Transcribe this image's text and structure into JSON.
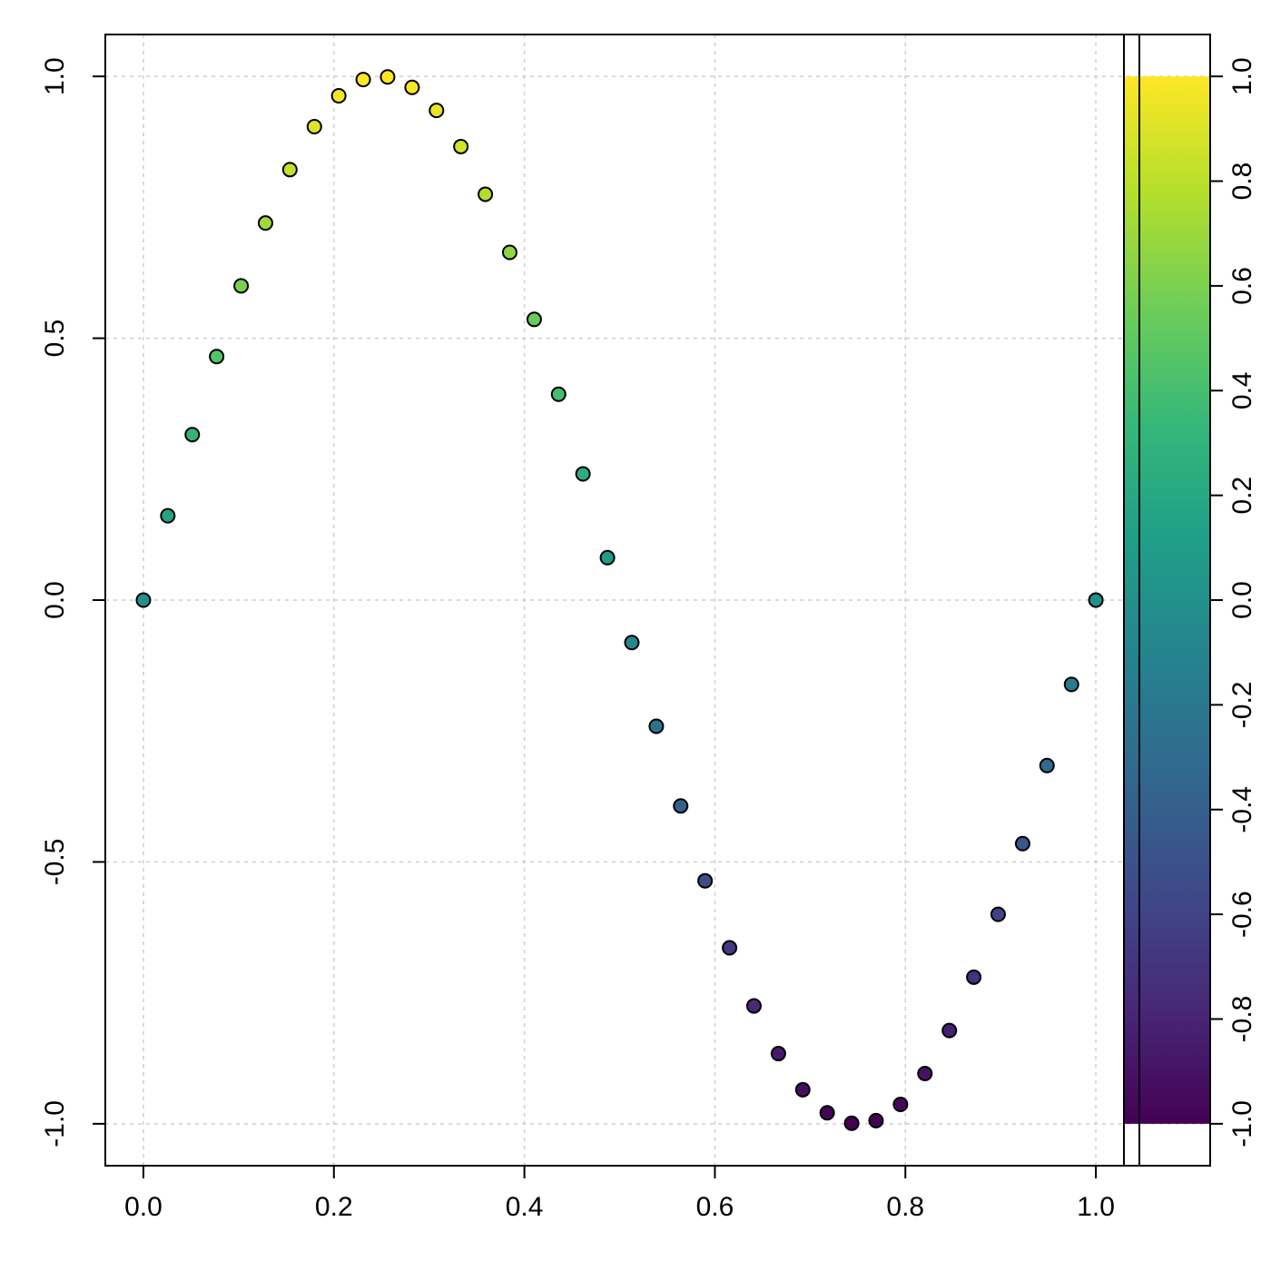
{
  "chart_data": {
    "type": "scatter",
    "title": "",
    "xlabel": "",
    "ylabel": "",
    "xlim": [
      -0.04,
      1.12
    ],
    "ylim": [
      -1.08,
      1.08
    ],
    "grid": true,
    "x_ticks": [
      "0.0",
      "0.2",
      "0.4",
      "0.6",
      "0.8",
      "1.0"
    ],
    "x_tick_values": [
      0,
      0.2,
      0.4,
      0.6,
      0.8,
      1.0
    ],
    "y_ticks": [
      "-1.0",
      "-0.5",
      "0.0",
      "0.5",
      "1.0"
    ],
    "y_tick_values": [
      -1,
      -0.5,
      0,
      0.5,
      1
    ],
    "color_by": "y",
    "colormap": "viridis",
    "colormap_stops": [
      "#440154",
      "#482878",
      "#3E4A89",
      "#31688E",
      "#26828E",
      "#1F9E89",
      "#35B779",
      "#6DCD59",
      "#B4DE2C",
      "#FDE725"
    ],
    "colorbar": {
      "range": [
        -1,
        1
      ],
      "ticks": [
        "1.0",
        "0.8",
        "0.6",
        "0.4",
        "0.2",
        "0.0",
        "-0.2",
        "-0.4",
        "-0.6",
        "-0.8",
        "-1.0"
      ],
      "tick_values": [
        1,
        0.8,
        0.6,
        0.4,
        0.2,
        0,
        -0.2,
        -0.4,
        -0.6,
        -0.8,
        -1
      ]
    },
    "x": [
      0,
      0.0256,
      0.0513,
      0.0769,
      0.1026,
      0.1282,
      0.1538,
      0.1795,
      0.2051,
      0.2308,
      0.2564,
      0.2821,
      0.3077,
      0.3333,
      0.359,
      0.3846,
      0.4103,
      0.4359,
      0.4615,
      0.4872,
      0.5128,
      0.5385,
      0.5641,
      0.5897,
      0.6154,
      0.641,
      0.6667,
      0.6923,
      0.7179,
      0.7436,
      0.7692,
      0.7949,
      0.8205,
      0.8462,
      0.8718,
      0.8974,
      0.9231,
      0.9487,
      0.9744,
      1.0
    ],
    "y": [
      0,
      0.161,
      0.316,
      0.465,
      0.6,
      0.72,
      0.822,
      0.904,
      0.963,
      0.994,
      0.999,
      0.979,
      0.935,
      0.866,
      0.775,
      0.664,
      0.536,
      0.393,
      0.241,
      0.081,
      -0.081,
      -0.241,
      -0.393,
      -0.536,
      -0.664,
      -0.775,
      -0.866,
      -0.935,
      -0.979,
      -0.999,
      -0.994,
      -0.963,
      -0.904,
      -0.822,
      -0.72,
      -0.6,
      -0.465,
      -0.316,
      -0.161,
      0
    ]
  }
}
